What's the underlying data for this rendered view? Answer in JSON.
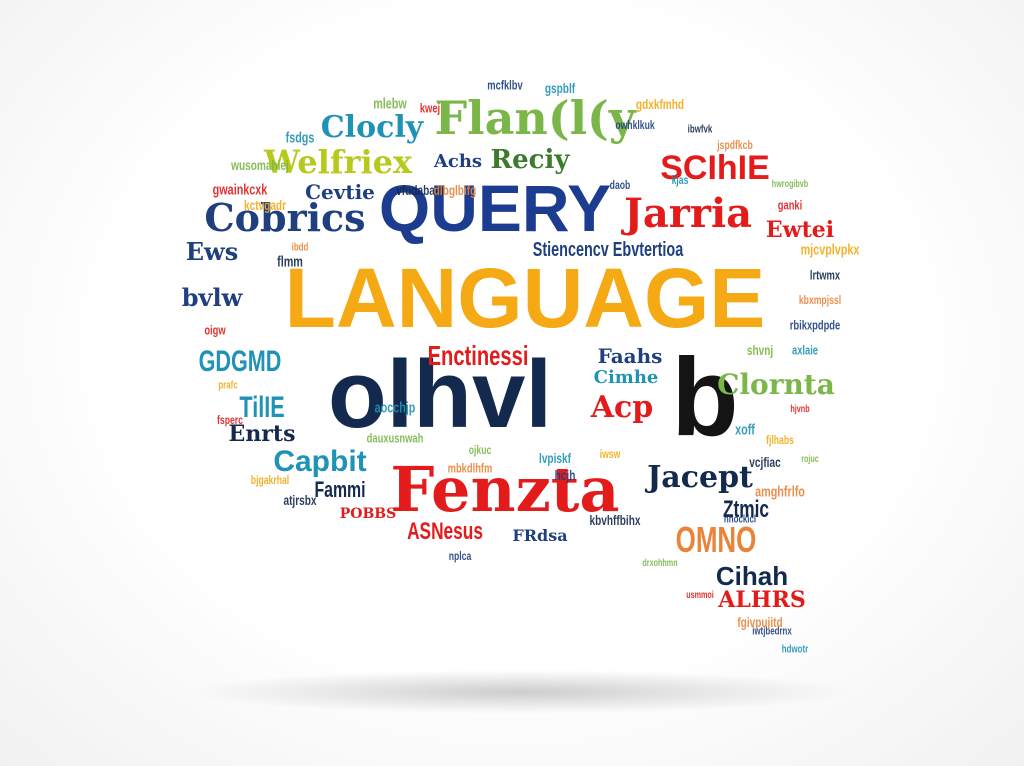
{
  "image": {
    "subject": "speech-bubble word cloud",
    "colors": {
      "background": "#ffffff",
      "shadow": "#bfbfbf",
      "yellow": "#f5a914",
      "blue": "#1c3d8f",
      "red": "#e31b1b",
      "navy": "#13294d",
      "green": "#7ab648",
      "teal": "#1f93b5",
      "orange": "#e8843a",
      "black": "#141414"
    }
  },
  "words": {
    "language": "LANGUAGE",
    "query": "QUERY",
    "glyphs_main": "olhvl",
    "glyph_b": "b",
    "fenzta": "Fenzta",
    "flangy": "Flan(l(y",
    "cobrics": "Cobrics",
    "jarria": "Jarria",
    "scihe": "SCIhIE",
    "welfriex": "Welfriex",
    "clocly": "Clocly",
    "reciy": "Reciy",
    "achs": "Achs",
    "cevtie": "Cevtie",
    "ews": "Ews",
    "bvlw": "bvlw",
    "gdgmd": "GDGMD",
    "tilie": "TilIE",
    "enrts": "Enrts",
    "capbit": "Capbit",
    "fammi": "Fammi",
    "pobbs": "POBBS",
    "asnesus": "ASNesus",
    "enctinessi": "Enctinessi",
    "faahs": "Faahs",
    "cimhe": "Cimhe",
    "clornta": "Clornta",
    "acp": "Acp",
    "jacept": "Jacept",
    "ztmic": "Ztmic",
    "omno": "OMNO",
    "cihah": "Cihah",
    "alhrs": "ALHRS",
    "ewtei": "Ewtei",
    "stiencer": "Stiencencv Ebvtertioa",
    "fhkvm": "FRdsa"
  }
}
